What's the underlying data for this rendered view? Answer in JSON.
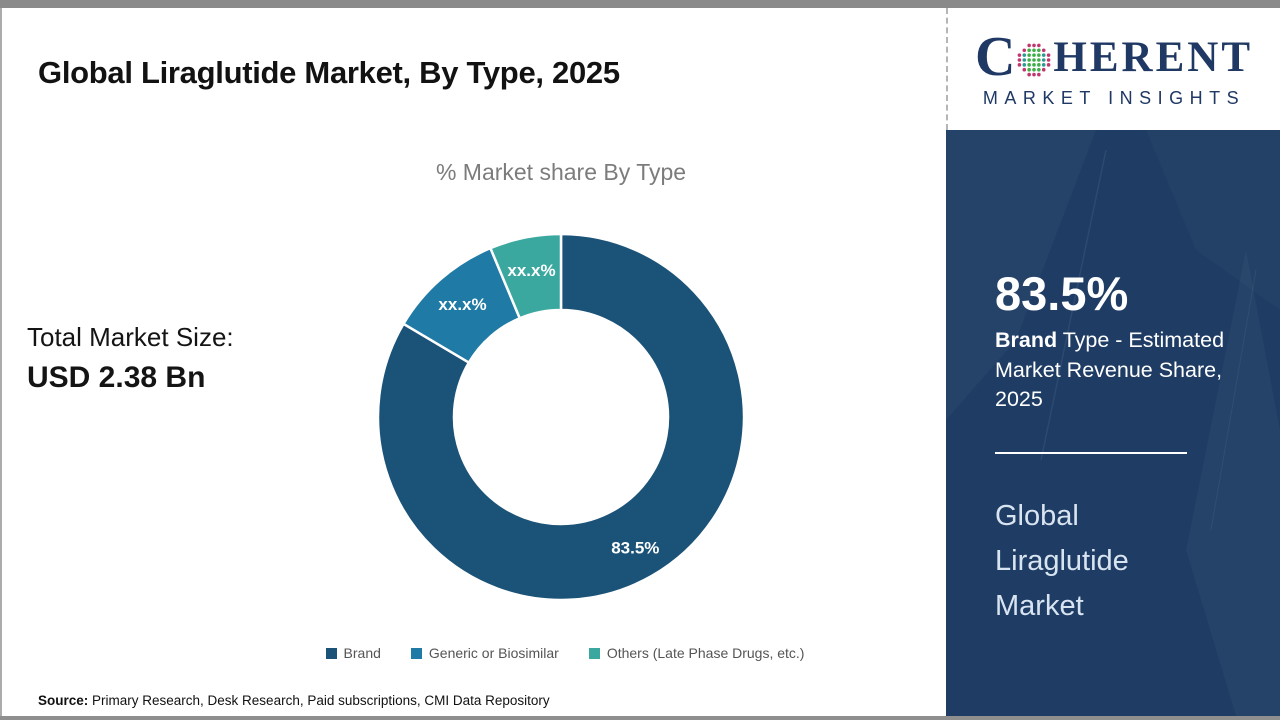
{
  "page": {
    "title": "Global Liraglutide Market, By Type, 2025"
  },
  "logo": {
    "c": "C",
    "rest": "HERENT",
    "subtitle": "MARKET INSIGHTS",
    "navy": "#1f3864",
    "globe_colors": {
      "center": "#3fae49",
      "mid": "#2b9a94",
      "outer": "#c2366f"
    }
  },
  "total_market": {
    "label": "Total Market Size:",
    "value": "USD 2.38 Bn"
  },
  "chart_data": {
    "type": "pie",
    "donut": true,
    "title": "% Market share By Type",
    "labels": [
      "Brand",
      "Generic or Biosimilar",
      "Others (Late Phase Drugs, etc.)"
    ],
    "values": [
      83.5,
      10.2,
      6.3
    ],
    "values_note": "Only 83.5% (Brand) is shown on chart; other slice values are masked as xx.x% and estimated from arc size",
    "display_labels": [
      "83.5%",
      "xx.x%",
      "xx.x%"
    ],
    "colors": [
      "#1b5277",
      "#1f7aa6",
      "#3ba8a0"
    ],
    "start_angle_deg": 0,
    "legend_position": "bottom"
  },
  "sidebar": {
    "stat_value": "83.5%",
    "stat_bold": "Brand",
    "stat_rest": " Type - Estimated Market Revenue Share, 2025",
    "market_name": "Global Liraglutide Market"
  },
  "footer": {
    "source_label": "Source:",
    "source_text": " Primary Research, Desk Research, Paid subscriptions, CMI Data Repository"
  },
  "theme": {
    "sidebar_bg": "#1e3c64",
    "topbar_gray": "#8a8a8a",
    "chart_title_gray": "#7c7c7c"
  }
}
